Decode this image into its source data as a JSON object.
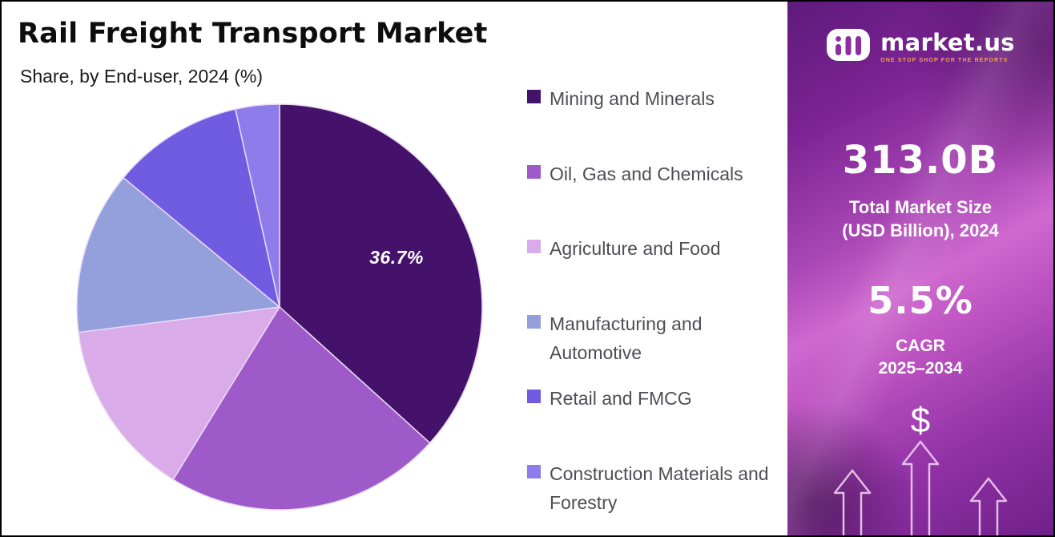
{
  "header": {
    "title": "Rail Freight Transport Market",
    "subtitle": "Share, by End-user, 2024 (%)"
  },
  "chart_data": {
    "type": "pie",
    "title": "Rail Freight Transport Market Share, by End-user, 2024 (%)",
    "labels": [
      "Mining and Minerals",
      "Oil, Gas and Chemicals",
      "Agriculture and Food",
      "Manufacturing and Automotive",
      "Retail and FMCG",
      "Construction Materials and Forestry"
    ],
    "values": [
      36.7,
      22.1,
      14.2,
      13.0,
      10.5,
      3.5
    ],
    "colors": [
      "#44126a",
      "#9d5ac8",
      "#d9abe9",
      "#94a0dc",
      "#6f5ce1",
      "#8f7ceb"
    ],
    "annotation": "36.7%",
    "start_angle_deg": 0,
    "direction": "clockwise",
    "legend_position": "right",
    "slice_border_color": "#ead9f4"
  },
  "sidebar": {
    "logo": {
      "brand": "market.us",
      "tagline": "ONE STOP SHOP FOR THE REPORTS"
    },
    "market_size_value": "313.0B",
    "market_size_label_line1": "Total Market Size",
    "market_size_label_line2": "(USD Billion), 2024",
    "cagr_value": "5.5%",
    "cagr_label_line1": "CAGR",
    "cagr_label_line2": "2025–2034",
    "dollar_symbol": "$"
  }
}
